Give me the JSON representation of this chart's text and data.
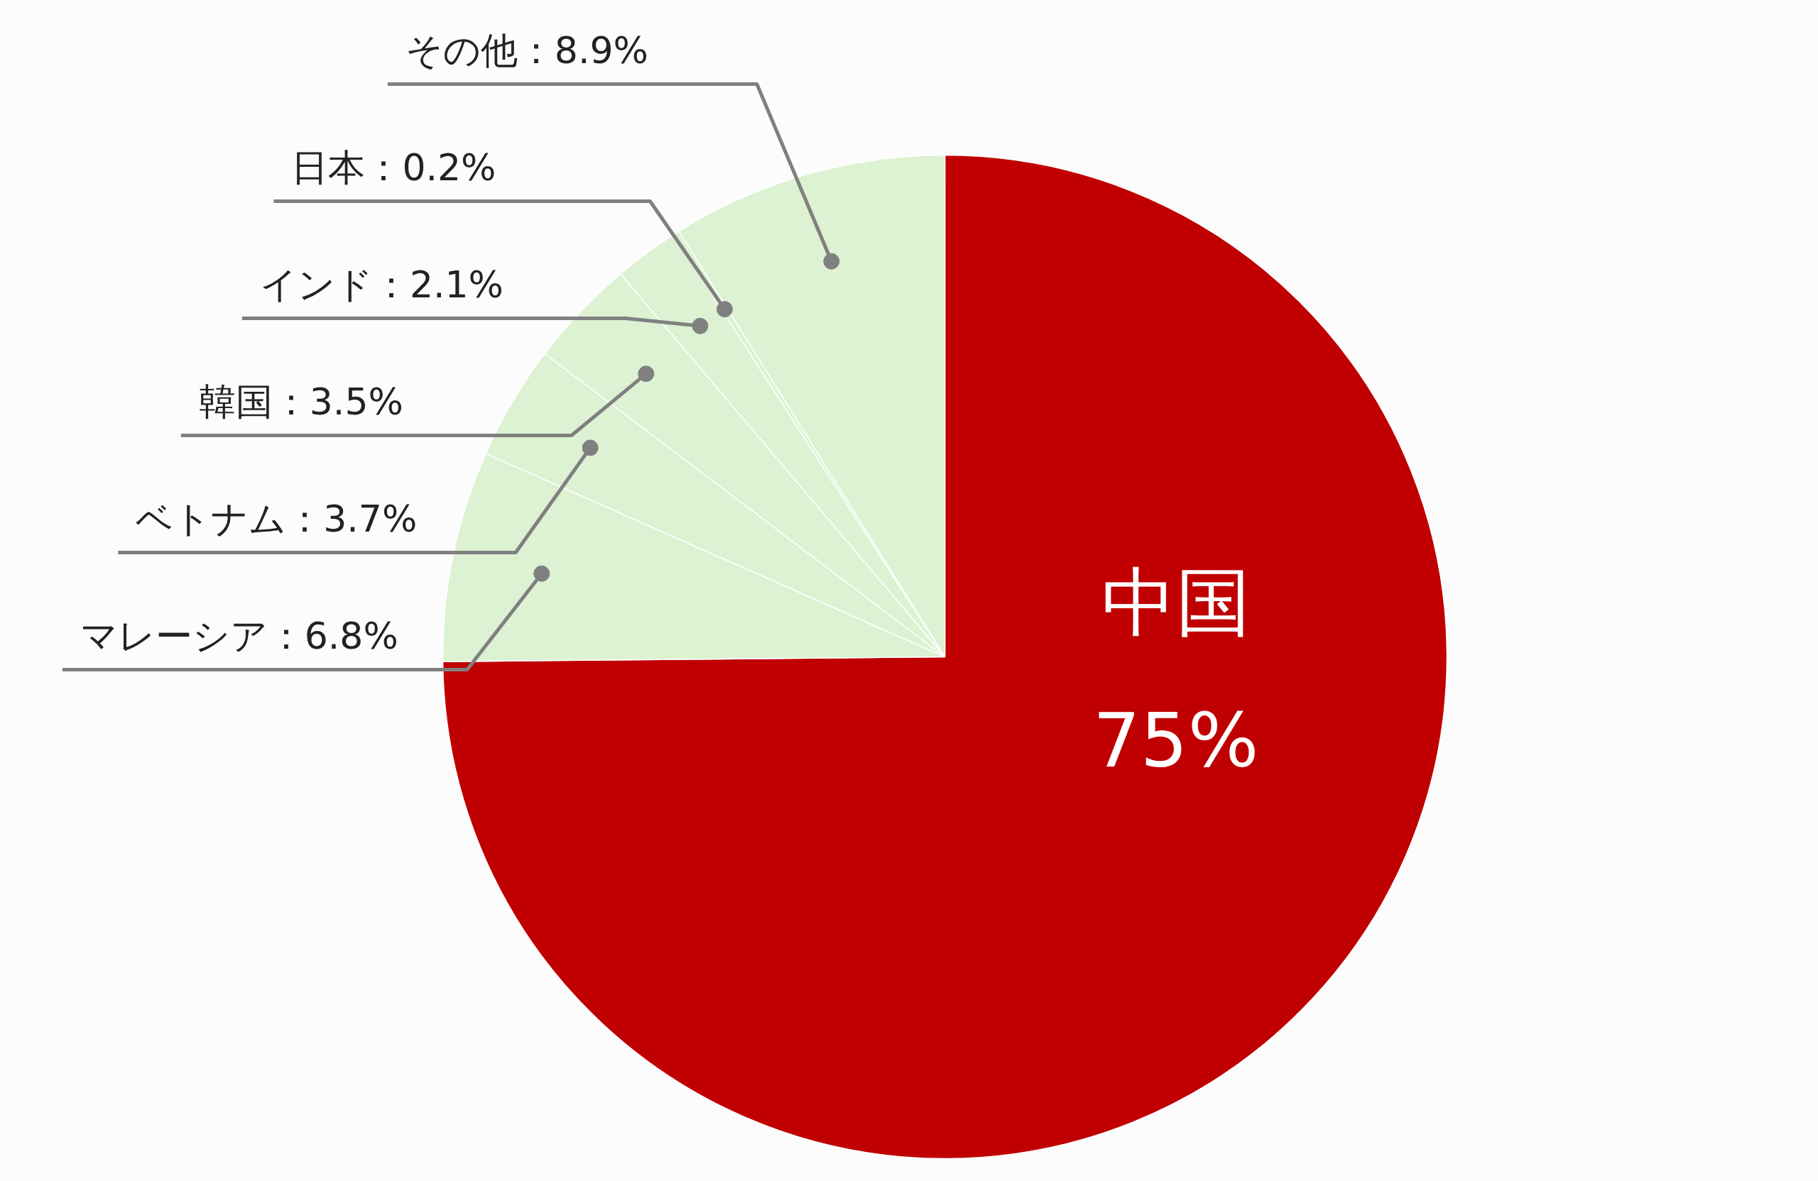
{
  "chart_data": {
    "type": "pie",
    "categories": [
      "中国",
      "マレーシア",
      "ベトナム",
      "韓国",
      "インド",
      "日本",
      "その他"
    ],
    "values": [
      75,
      6.8,
      3.7,
      3.5,
      2.1,
      0.2,
      8.9
    ],
    "value_labels": [
      "75%",
      "6.8%",
      "3.7%",
      "3.5%",
      "2.1%",
      "0.2%",
      "8.9%"
    ],
    "colors": [
      "#c00000",
      "#dcf2d2",
      "#dcf2d2",
      "#dcf2d2",
      "#dcf2d2",
      "#dcf2d2",
      "#dcf2d2"
    ]
  }
}
